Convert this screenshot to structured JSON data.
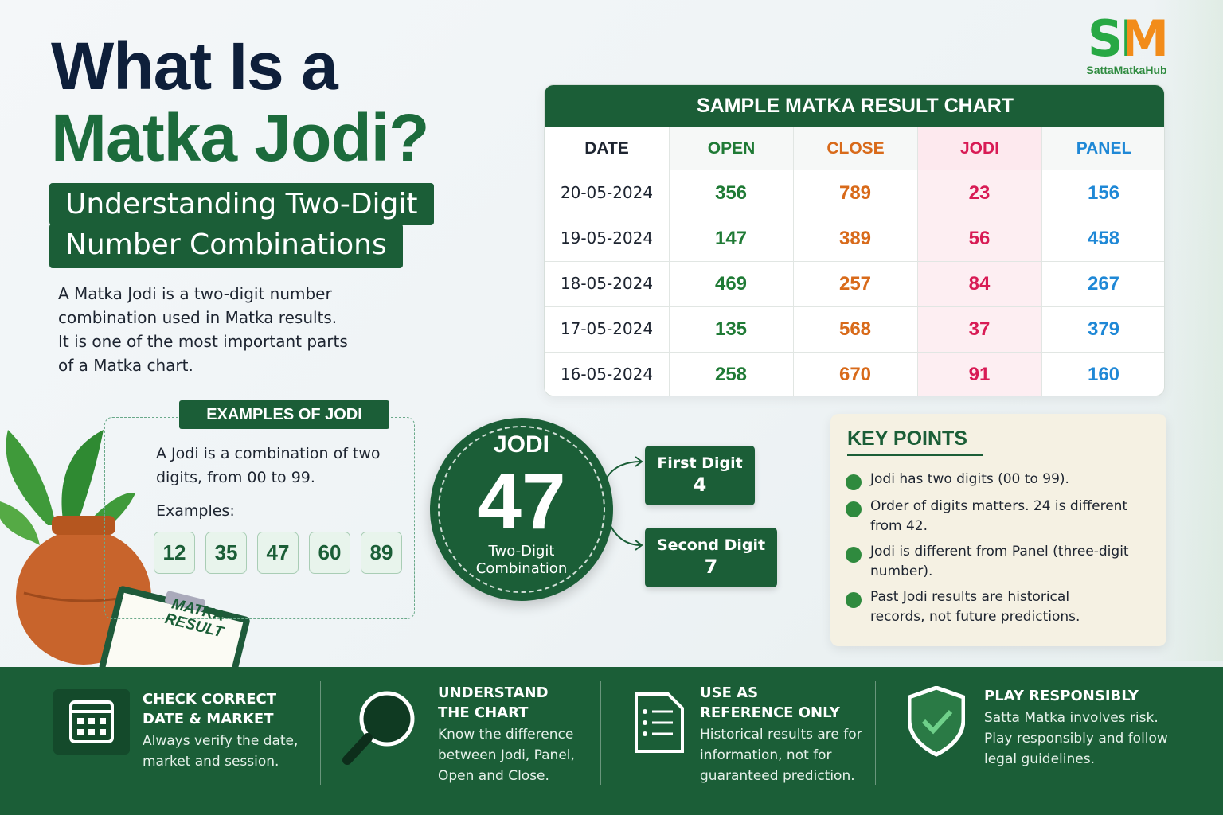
{
  "logo": {
    "mark": "SM",
    "name": "SattaMatkaHub"
  },
  "header": {
    "title": [
      "What Is a",
      "Matka Jodi?"
    ],
    "subtitle": [
      "Understanding Two-Digit",
      "Number Combinations"
    ],
    "intro": [
      "A Matka Jodi is a two-digit number",
      "combination used in Matka results.",
      "It is one of the most important parts",
      "of a Matka chart."
    ]
  },
  "table": {
    "title": "SAMPLE MATKA RESULT CHART",
    "columns": [
      "DATE",
      "OPEN",
      "CLOSE",
      "JODI",
      "PANEL"
    ],
    "rows": [
      [
        "20-05-2024",
        "356",
        "789",
        "23",
        "156"
      ],
      [
        "19-05-2024",
        "147",
        "389",
        "56",
        "458"
      ],
      [
        "18-05-2024",
        "469",
        "257",
        "84",
        "267"
      ],
      [
        "17-05-2024",
        "135",
        "568",
        "37",
        "379"
      ],
      [
        "16-05-2024",
        "258",
        "670",
        "91",
        "160"
      ]
    ]
  },
  "examples": {
    "heading": "EXAMPLES OF JODI",
    "text": [
      "A Jodi is a combination of two",
      "digits, from 00 to 99."
    ],
    "label": "Examples:",
    "items": [
      "12",
      "35",
      "47",
      "60",
      "89"
    ]
  },
  "illustration": {
    "clipboard": [
      "MATKA",
      "RESULT"
    ]
  },
  "jodi": {
    "label": "JODI",
    "number": "47",
    "caption": [
      "Two-Digit",
      "Combination"
    ],
    "digits": [
      {
        "label": "First Digit",
        "value": "4"
      },
      {
        "label": "Second Digit",
        "value": "7"
      }
    ]
  },
  "key_points": {
    "heading": "KEY POINTS",
    "items": [
      [
        "Jodi has two digits (00 to 99)."
      ],
      [
        "Order of digits matters. 24 is different",
        "from 42."
      ],
      [
        "Jodi is different from Panel (three-digit",
        "number)."
      ],
      [
        "Past Jodi results are historical",
        "records, not future predictions."
      ]
    ]
  },
  "footer": [
    {
      "title": [
        "CHECK CORRECT",
        "DATE & MARKET"
      ],
      "text": [
        "Always verify the date,",
        "market and session."
      ]
    },
    {
      "title": [
        "UNDERSTAND",
        "THE CHART"
      ],
      "text": [
        "Know the difference",
        "between Jodi, Panel,",
        "Open and Close."
      ]
    },
    {
      "title": [
        "USE AS",
        "REFERENCE ONLY"
      ],
      "text": [
        "Historical results are for",
        "information, not for",
        "guaranteed prediction."
      ]
    },
    {
      "title": [
        "PLAY RESPONSIBLY"
      ],
      "text": [
        "Satta Matka involves risk.",
        "Play responsibly and follow",
        "legal guidelines."
      ]
    }
  ]
}
